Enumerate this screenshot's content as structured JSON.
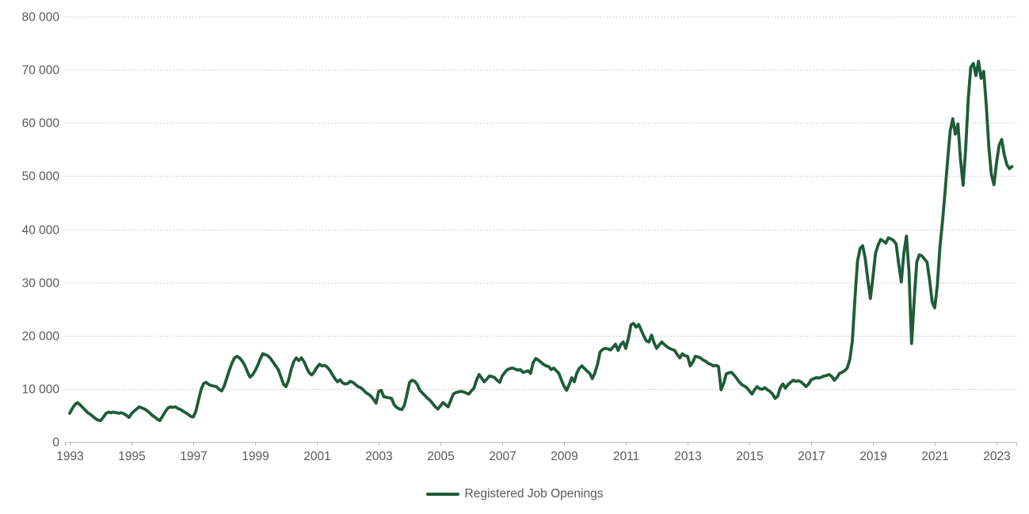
{
  "chart_data": {
    "type": "line",
    "title": "",
    "xlabel": "",
    "ylabel": "",
    "ylim": [
      0,
      80000
    ],
    "y_ticks": [
      0,
      10000,
      20000,
      30000,
      40000,
      50000,
      60000,
      70000,
      80000
    ],
    "y_tick_labels": [
      "0",
      "10 000",
      "20 000",
      "30 000",
      "40 000",
      "50 000",
      "60 000",
      "70 000",
      "80 000"
    ],
    "x_tick_labels": [
      "1993",
      "1995",
      "1997",
      "1999",
      "2001",
      "2003",
      "2005",
      "2007",
      "2009",
      "2011",
      "2013",
      "2015",
      "2017",
      "2019",
      "2021",
      "2023"
    ],
    "grid": "horizontal-dotted",
    "legend_position": "bottom-center",
    "axis_text_color": "#595959",
    "grid_color": "#D0D0D0",
    "axis_line_color": "#BFBFBF",
    "series": [
      {
        "name": "Registered Job Openings",
        "color": "#1E5C39",
        "start": "1993-01",
        "frequency": "monthly",
        "values": [
          5400,
          6300,
          7000,
          7400,
          7000,
          6500,
          6000,
          5500,
          5200,
          4800,
          4400,
          4100,
          4000,
          4600,
          5300,
          5600,
          5500,
          5600,
          5500,
          5400,
          5500,
          5300,
          5000,
          4600,
          5300,
          5800,
          6200,
          6600,
          6400,
          6200,
          5900,
          5500,
          5000,
          4700,
          4300,
          4000,
          4800,
          5600,
          6300,
          6600,
          6500,
          6600,
          6300,
          6100,
          5800,
          5500,
          5200,
          4800,
          4700,
          5800,
          7800,
          9800,
          11000,
          11200,
          10800,
          10600,
          10500,
          10400,
          9900,
          9600,
          10500,
          12000,
          13500,
          14800,
          15800,
          16100,
          15800,
          15200,
          14400,
          13200,
          12200,
          12600,
          13400,
          14400,
          15600,
          16600,
          16400,
          16200,
          15700,
          15000,
          14300,
          13600,
          12300,
          10900,
          10400,
          11600,
          13600,
          15100,
          15800,
          15300,
          15800,
          15100,
          14000,
          13000,
          12600,
          13200,
          14000,
          14600,
          14300,
          14400,
          14100,
          13500,
          12700,
          11900,
          11300,
          11700,
          11100,
          10900,
          11000,
          11400,
          11200,
          10800,
          10400,
          10200,
          9800,
          9300,
          9000,
          8600,
          8000,
          7300,
          9500,
          9700,
          8500,
          8400,
          8300,
          8200,
          7000,
          6500,
          6200,
          6100,
          6900,
          9000,
          11200,
          11600,
          11400,
          10800,
          9700,
          9200,
          8700,
          8200,
          7800,
          7200,
          6600,
          6200,
          6800,
          7400,
          7000,
          6600,
          7800,
          9000,
          9300,
          9400,
          9500,
          9400,
          9200,
          9000,
          9600,
          10100,
          11600,
          12700,
          12000,
          11300,
          11800,
          12400,
          12300,
          12100,
          11600,
          11200,
          12400,
          13100,
          13600,
          13800,
          13900,
          13700,
          13500,
          13600,
          13100,
          13200,
          13400,
          12900,
          14900,
          15700,
          15400,
          15000,
          14600,
          14300,
          14200,
          13600,
          13900,
          13400,
          12900,
          11600,
          10500,
          9700,
          10800,
          12100,
          11300,
          13000,
          13900,
          14300,
          13800,
          13300,
          12900,
          11900,
          13000,
          14600,
          16900,
          17400,
          17600,
          17500,
          17300,
          17800,
          18400,
          17200,
          18300,
          18800,
          17600,
          19500,
          22000,
          22300,
          21600,
          22100,
          21000,
          19900,
          19000,
          18800,
          20100,
          18600,
          17600,
          18300,
          18800,
          18300,
          17900,
          17600,
          17400,
          17200,
          16400,
          15800,
          16600,
          16200,
          16100,
          14300,
          15000,
          16100,
          16000,
          15800,
          15400,
          15200,
          14800,
          14600,
          14300,
          14400,
          14200,
          9800,
          11000,
          12800,
          13000,
          13100,
          12600,
          12000,
          11300,
          10800,
          10500,
          10200,
          9600,
          9000,
          9800,
          10400,
          10000,
          9900,
          10200,
          9800,
          9500,
          9000,
          8200,
          8600,
          10200,
          10900,
          10100,
          10800,
          11200,
          11600,
          11400,
          11500,
          11300,
          10900,
          10400,
          10900,
          11700,
          11900,
          12100,
          12000,
          12200,
          12400,
          12500,
          12700,
          12300,
          11600,
          12100,
          12900,
          13100,
          13400,
          13900,
          15500,
          19000,
          27000,
          34000,
          36400,
          36900,
          34500,
          30500,
          27000,
          31000,
          35500,
          37000,
          38100,
          37800,
          37400,
          38400,
          38200,
          37900,
          37200,
          33500,
          30100,
          35500,
          38700,
          32000,
          18500,
          26500,
          33800,
          35200,
          35000,
          34400,
          33800,
          30500,
          26300,
          25200,
          29500,
          36500,
          41500,
          47000,
          53000,
          58500,
          60800,
          57900,
          59800,
          53200,
          48300,
          55000,
          64500,
          70500,
          71200,
          68900,
          71600,
          68400,
          69700,
          63500,
          55500,
          50300,
          48400,
          52500,
          55800,
          56900,
          54000,
          52200,
          51400,
          51800
        ]
      }
    ]
  }
}
